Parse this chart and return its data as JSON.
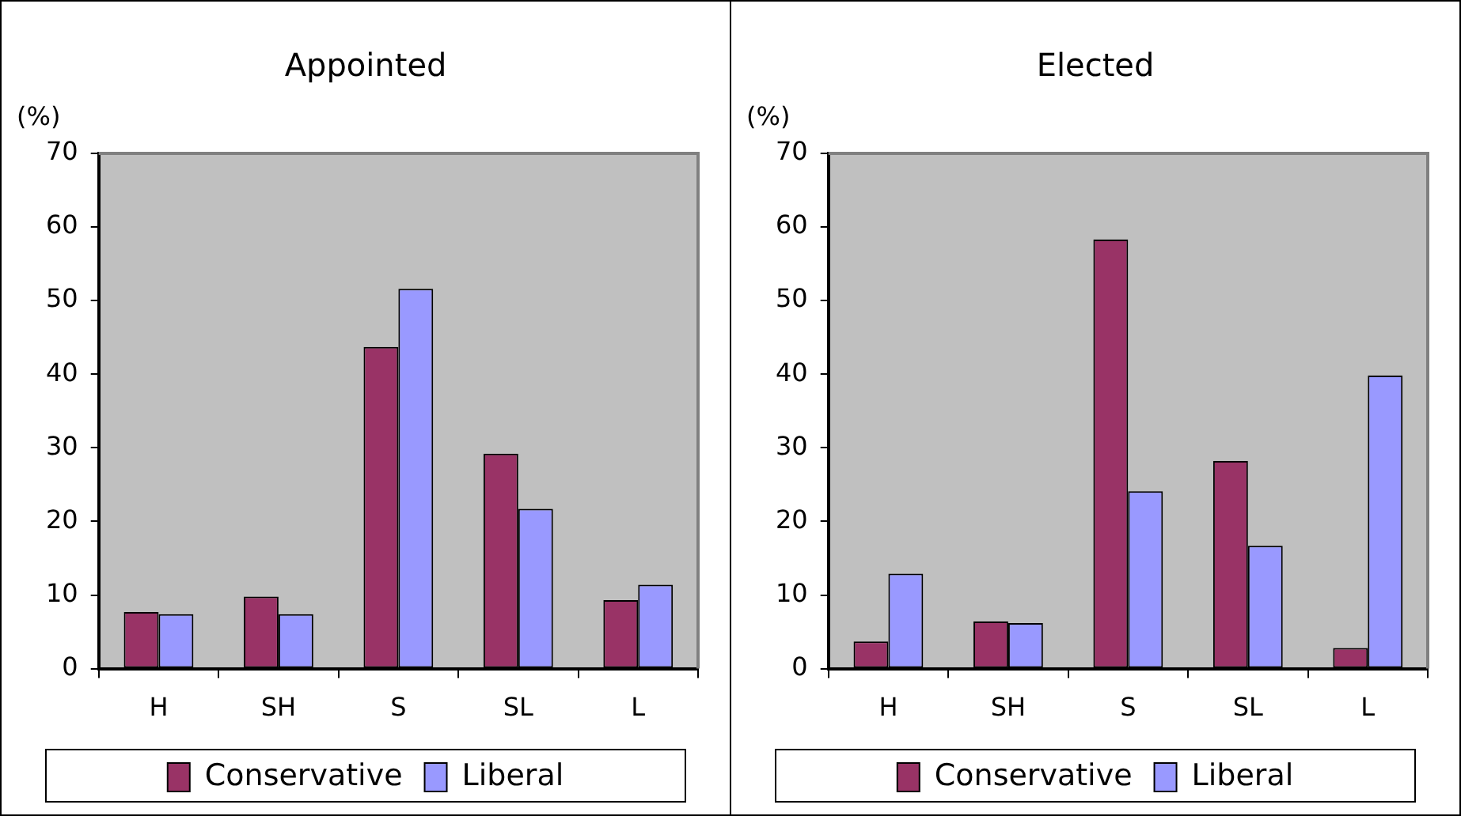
{
  "chart_data": [
    {
      "type": "bar",
      "title": "Appointed",
      "ylabel": "(%)",
      "categories": [
        "H",
        "SH",
        "S",
        "SL",
        "L"
      ],
      "series": [
        {
          "name": "Conservative",
          "color": "#993366",
          "values": [
            7.7,
            9.8,
            43.7,
            29.2,
            9.3
          ]
        },
        {
          "name": "Liberal",
          "color": "#9999ff",
          "values": [
            7.4,
            7.4,
            51.6,
            21.7,
            11.4
          ]
        }
      ],
      "ylim": [
        0,
        70
      ],
      "yticks": [
        0,
        10,
        20,
        30,
        40,
        50,
        60,
        70
      ],
      "grid": false,
      "legend": "bottom"
    },
    {
      "type": "bar",
      "title": "Elected",
      "ylabel": "(%)",
      "categories": [
        "H",
        "SH",
        "S",
        "SL",
        "L"
      ],
      "series": [
        {
          "name": "Conservative",
          "color": "#993366",
          "values": [
            3.7,
            6.4,
            58.3,
            28.2,
            2.8
          ]
        },
        {
          "name": "Liberal",
          "color": "#9999ff",
          "values": [
            12.9,
            6.2,
            24.1,
            16.7,
            39.8
          ]
        }
      ],
      "ylim": [
        0,
        70
      ],
      "yticks": [
        0,
        10,
        20,
        30,
        40,
        50,
        60,
        70
      ],
      "grid": false,
      "legend": "bottom"
    }
  ]
}
